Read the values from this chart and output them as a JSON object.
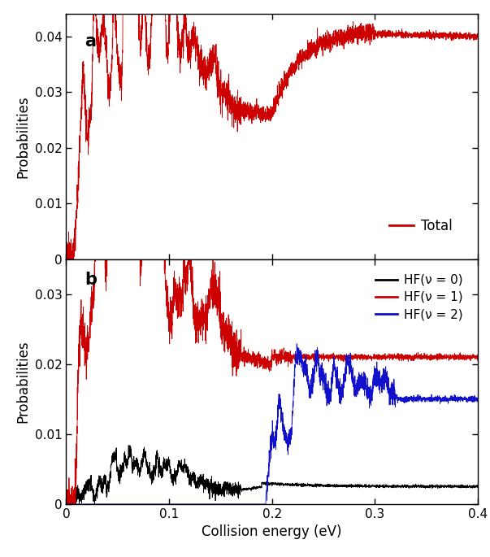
{
  "xlim": [
    0,
    0.4
  ],
  "ylim_a": [
    0,
    0.044
  ],
  "ylim_b": [
    0,
    0.035
  ],
  "xlabel": "Collision energy (eV)",
  "ylabel": "Probabilities",
  "label_a": "a",
  "label_b": "b",
  "legend_a": [
    "Total"
  ],
  "legend_b": [
    "HF(ν = 0)",
    "HF(ν = 1)",
    "HF(ν = 2)"
  ],
  "colors_a": [
    "#cc0000"
  ],
  "colors_b": [
    "#000000",
    "#cc0000",
    "#1111cc"
  ],
  "yticks_a": [
    0,
    0.01,
    0.02,
    0.03,
    0.04
  ],
  "yticks_b": [
    0,
    0.01,
    0.02,
    0.03
  ],
  "xticks": [
    0,
    0.1,
    0.2,
    0.3,
    0.4
  ],
  "seed": 42
}
